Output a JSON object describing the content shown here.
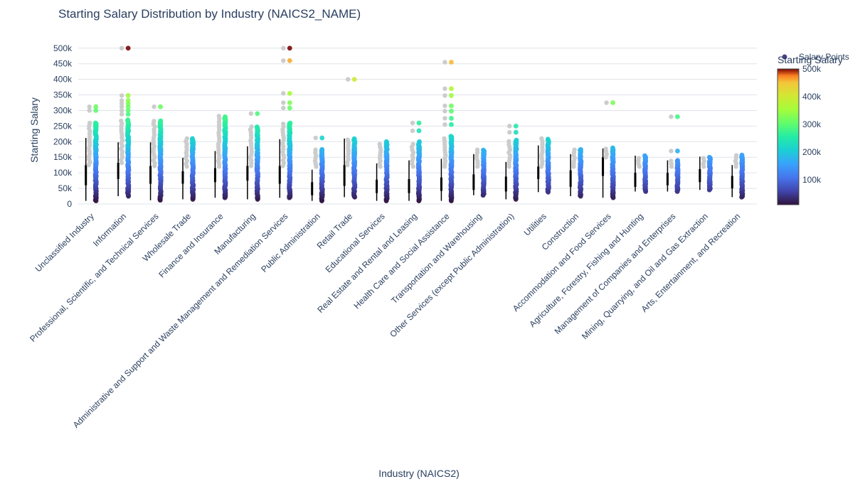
{
  "chart_data": {
    "type": "scatter",
    "title": "Starting Salary Distribution by Industry (NAICS2_NAME)",
    "xlabel": "Industry (NAICS2)",
    "ylabel": "Starting Salary",
    "ylim": [
      0,
      520000
    ],
    "yticks": [
      0,
      50000,
      100000,
      150000,
      200000,
      250000,
      300000,
      350000,
      400000,
      450000,
      500000
    ],
    "ytick_labels": [
      "0",
      "50k",
      "100k",
      "150k",
      "200k",
      "250k",
      "300k",
      "350k",
      "400k",
      "450k",
      "500k"
    ],
    "grid": true,
    "legend": {
      "position": "top-right",
      "entries": [
        "Salary Points"
      ]
    },
    "colorbar": {
      "title": "Starting Salary",
      "colorscale": "Turbo",
      "range": [
        10000,
        500000
      ],
      "ticks": [
        100000,
        200000,
        300000,
        400000,
        500000
      ],
      "tick_labels": [
        "100k",
        "200k",
        "300k",
        "400k",
        "500k"
      ]
    },
    "categories": [
      "Unclassified Industry",
      "Information",
      "Professional, Scientific, and Technical Services",
      "Wholesale Trade",
      "Finance and Insurance",
      "Manufacturing",
      "Administrative and Support and Waste Management and Remediation Services",
      "Public Administration",
      "Retail Trade",
      "Educational Services",
      "Real Estate and Rental and Leasing",
      "Health Care and Social Assistance",
      "Transportation and Warehousing",
      "Other Services (except Public Administration)",
      "Utilities",
      "Construction",
      "Accommodation and Food Services",
      "Agriculture, Forestry, Fishing and Hunting",
      "Management of Companies and Enterprises",
      "Mining, Quarrying, and Oil and Gas Extraction",
      "Arts, Entertainment, and Recreation"
    ],
    "distributions": [
      {
        "min": 10000,
        "q1": 60000,
        "median": 85000,
        "q3": 125000,
        "whisker_high": 212000,
        "core_max": 262000,
        "outliers": [
          300000,
          312000
        ]
      },
      {
        "min": 25000,
        "q1": 80000,
        "median": 100000,
        "q3": 132000,
        "whisker_high": 198000,
        "core_max": 270000,
        "outliers": [
          288000,
          300000,
          312000,
          322000,
          332000,
          348000,
          500000
        ]
      },
      {
        "min": 12000,
        "q1": 65000,
        "median": 88000,
        "q3": 122000,
        "whisker_high": 198000,
        "core_max": 268000,
        "outliers": [
          312000
        ]
      },
      {
        "min": 15000,
        "q1": 65000,
        "median": 82000,
        "q3": 105000,
        "whisker_high": 148000,
        "core_max": 210000,
        "outliers": []
      },
      {
        "min": 20000,
        "q1": 70000,
        "median": 90000,
        "q3": 115000,
        "whisker_high": 170000,
        "core_max": 282000,
        "outliers": []
      },
      {
        "min": 15000,
        "q1": 75000,
        "median": 100000,
        "q3": 122000,
        "whisker_high": 185000,
        "core_max": 248000,
        "outliers": [
          290000
        ]
      },
      {
        "min": 20000,
        "q1": 65000,
        "median": 92000,
        "q3": 122000,
        "whisker_high": 208000,
        "core_max": 262000,
        "outliers": [
          308000,
          325000,
          355000,
          460000,
          500000
        ]
      },
      {
        "min": 10000,
        "q1": 28000,
        "median": 48000,
        "q3": 70000,
        "whisker_high": 110000,
        "core_max": 175000,
        "outliers": [
          212000
        ]
      },
      {
        "min": 22000,
        "q1": 58000,
        "median": 85000,
        "q3": 125000,
        "whisker_high": 210000,
        "core_max": 210000,
        "outliers": [
          400000
        ]
      },
      {
        "min": 10000,
        "q1": 35000,
        "median": 55000,
        "q3": 78000,
        "whisker_high": 130000,
        "core_max": 200000,
        "outliers": []
      },
      {
        "min": 10000,
        "q1": 35000,
        "median": 58000,
        "q3": 80000,
        "whisker_high": 140000,
        "core_max": 200000,
        "outliers": [
          235000,
          260000
        ]
      },
      {
        "min": 10000,
        "q1": 42000,
        "median": 60000,
        "q3": 85000,
        "whisker_high": 145000,
        "core_max": 218000,
        "outliers": [
          255000,
          275000,
          298000,
          315000,
          348000,
          370000,
          455000
        ]
      },
      {
        "min": 28000,
        "q1": 45000,
        "median": 68000,
        "q3": 95000,
        "whisker_high": 160000,
        "core_max": 175000,
        "outliers": []
      },
      {
        "min": 15000,
        "q1": 40000,
        "median": 62000,
        "q3": 88000,
        "whisker_high": 135000,
        "core_max": 205000,
        "outliers": [
          230000,
          250000
        ]
      },
      {
        "min": 38000,
        "q1": 80000,
        "median": 100000,
        "q3": 120000,
        "whisker_high": 188000,
        "core_max": 210000,
        "outliers": []
      },
      {
        "min": 25000,
        "q1": 55000,
        "median": 78000,
        "q3": 108000,
        "whisker_high": 160000,
        "core_max": 175000,
        "outliers": []
      },
      {
        "min": 20000,
        "q1": 90000,
        "median": 110000,
        "q3": 150000,
        "whisker_high": 178000,
        "core_max": 180000,
        "outliers": [
          325000
        ]
      },
      {
        "min": 40000,
        "q1": 55000,
        "median": 78000,
        "q3": 100000,
        "whisker_high": 155000,
        "core_max": 155000,
        "outliers": []
      },
      {
        "min": 40000,
        "q1": 60000,
        "median": 78000,
        "q3": 100000,
        "whisker_high": 140000,
        "core_max": 140000,
        "outliers": [
          170000,
          280000
        ]
      },
      {
        "min": 45000,
        "q1": 70000,
        "median": 90000,
        "q3": 112000,
        "whisker_high": 152000,
        "core_max": 152000,
        "outliers": []
      },
      {
        "min": 22000,
        "q1": 50000,
        "median": 68000,
        "q3": 90000,
        "whisker_high": 125000,
        "core_max": 158000,
        "outliers": []
      }
    ]
  }
}
